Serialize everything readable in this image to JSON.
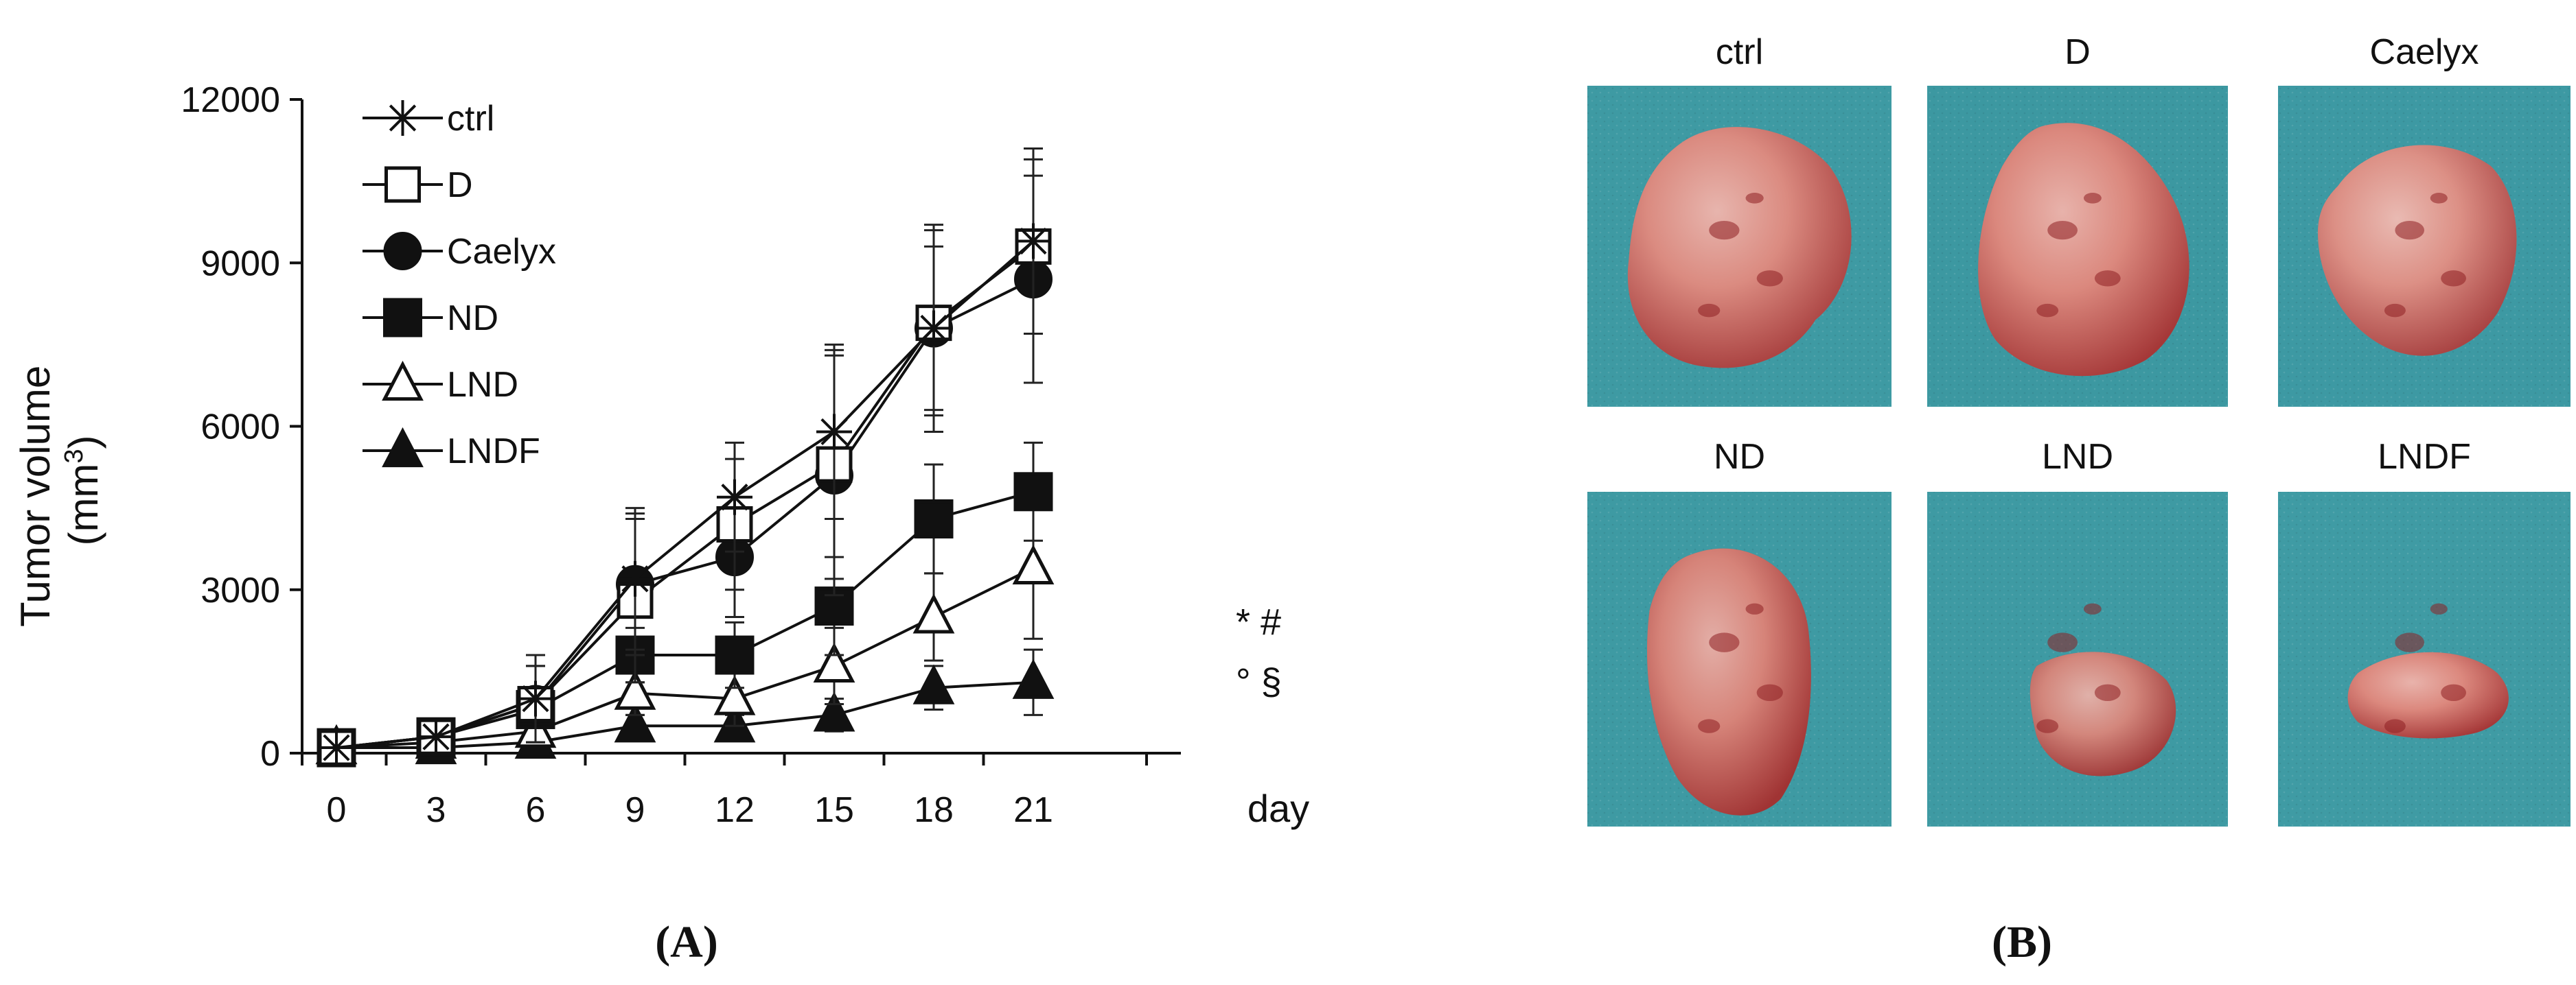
{
  "figure": {
    "panel_a_label": "(A)",
    "panel_b_label": "(B)",
    "significance": {
      "line1": "* #",
      "line2": "° §"
    }
  },
  "chart_data": {
    "type": "line",
    "title": "",
    "xlabel": "day",
    "ylabel": "Tumor volume (mm3)",
    "ylabel_lines": [
      "Tumor volume",
      "(mm",
      "3",
      ")"
    ],
    "x": [
      0,
      3,
      6,
      9,
      12,
      15,
      18,
      21
    ],
    "xticks": [
      "0",
      "3",
      "6",
      "9",
      "12",
      "15",
      "18",
      "21"
    ],
    "yticks": [
      "0",
      "3000",
      "6000",
      "9000",
      "12000"
    ],
    "ylim": [
      0,
      12000
    ],
    "grid": false,
    "legend_position": "top-left",
    "series": [
      {
        "name": "ctrl",
        "marker": "asterisk",
        "values": [
          100,
          300,
          1000,
          3200,
          4700,
          5900,
          7800,
          9400
        ],
        "errors": [
          0,
          0,
          800,
          1300,
          1000,
          1600,
          1900,
          1700
        ]
      },
      {
        "name": "D",
        "marker": "open-square",
        "values": [
          100,
          300,
          900,
          2800,
          4200,
          5300,
          7900,
          9300
        ],
        "errors": [
          0,
          0,
          700,
          1500,
          1200,
          2100,
          1700,
          1600
        ]
      },
      {
        "name": "Caelyx",
        "marker": "filled-circle",
        "values": [
          100,
          300,
          900,
          3100,
          3600,
          5100,
          7800,
          8700
        ],
        "errors": [
          0,
          0,
          700,
          1300,
          1100,
          2200,
          1500,
          1900
        ]
      },
      {
        "name": "ND",
        "marker": "filled-square",
        "values": [
          100,
          300,
          800,
          1800,
          1800,
          2700,
          4300,
          4800
        ],
        "errors": [
          0,
          0,
          300,
          500,
          600,
          900,
          1000,
          900
        ]
      },
      {
        "name": "LND",
        "marker": "open-triangle",
        "values": [
          100,
          200,
          400,
          1100,
          1000,
          1600,
          2500,
          3400
        ],
        "errors": [
          0,
          0,
          200,
          400,
          500,
          700,
          800,
          1300
        ]
      },
      {
        "name": "LNDF",
        "marker": "filled-triangle",
        "values": [
          100,
          100,
          200,
          500,
          500,
          700,
          1200,
          1300
        ],
        "errors": [
          0,
          0,
          100,
          200,
          200,
          300,
          400,
          600
        ]
      }
    ]
  },
  "photos": [
    {
      "label": "ctrl",
      "bg": "#3e9aa3",
      "tumor": "#c85a5a"
    },
    {
      "label": "D",
      "bg": "#3c98a1",
      "tumor": "#c94f4f"
    },
    {
      "label": "Caelyx",
      "bg": "#3d99a3",
      "tumor": "#d07070"
    },
    {
      "label": "ND",
      "bg": "#3e9aa3",
      "tumor": "#b53c3c"
    },
    {
      "label": "LND",
      "bg": "#3e9aa3",
      "tumor": "#a84848"
    },
    {
      "label": "LNDF",
      "bg": "#3f9ba4",
      "tumor": "#cc5050"
    }
  ]
}
